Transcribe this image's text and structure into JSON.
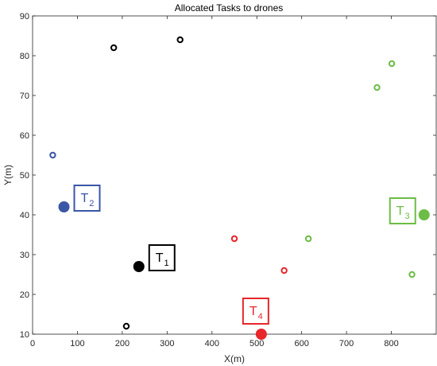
{
  "chart_data": {
    "type": "scatter",
    "title": "Allocated Tasks to drones",
    "xlabel": "X(m)",
    "ylabel": "Y(m)",
    "xlim": [
      0,
      900
    ],
    "ylim": [
      10,
      90
    ],
    "xticks": [
      0,
      100,
      200,
      300,
      400,
      500,
      600,
      700,
      800
    ],
    "yticks": [
      10,
      20,
      30,
      40,
      50,
      60,
      70,
      80,
      90
    ],
    "grid": false,
    "series": [
      {
        "color": "#000000",
        "task": {
          "x": 237,
          "y": 27,
          "label": "T",
          "sub": "1"
        },
        "drones": [
          {
            "x": 181,
            "y": 82
          },
          {
            "x": 329,
            "y": 84
          },
          {
            "x": 209,
            "y": 12
          }
        ]
      },
      {
        "color": "#3a56a7",
        "task": {
          "x": 70,
          "y": 42,
          "label": "T",
          "sub": "2"
        },
        "drones": [
          {
            "x": 45,
            "y": 55
          }
        ]
      },
      {
        "color": "#6cbd45",
        "task": {
          "x": 873,
          "y": 40,
          "label": "T",
          "sub": "3"
        },
        "drones": [
          {
            "x": 768,
            "y": 72
          },
          {
            "x": 801,
            "y": 78
          },
          {
            "x": 615,
            "y": 34
          },
          {
            "x": 846,
            "y": 25
          }
        ]
      },
      {
        "color": "#e8262b",
        "task": {
          "x": 510,
          "y": 10,
          "label": "T",
          "sub": "4"
        },
        "drones": [
          {
            "x": 450,
            "y": 34
          },
          {
            "x": 561,
            "y": 26
          }
        ]
      }
    ]
  }
}
